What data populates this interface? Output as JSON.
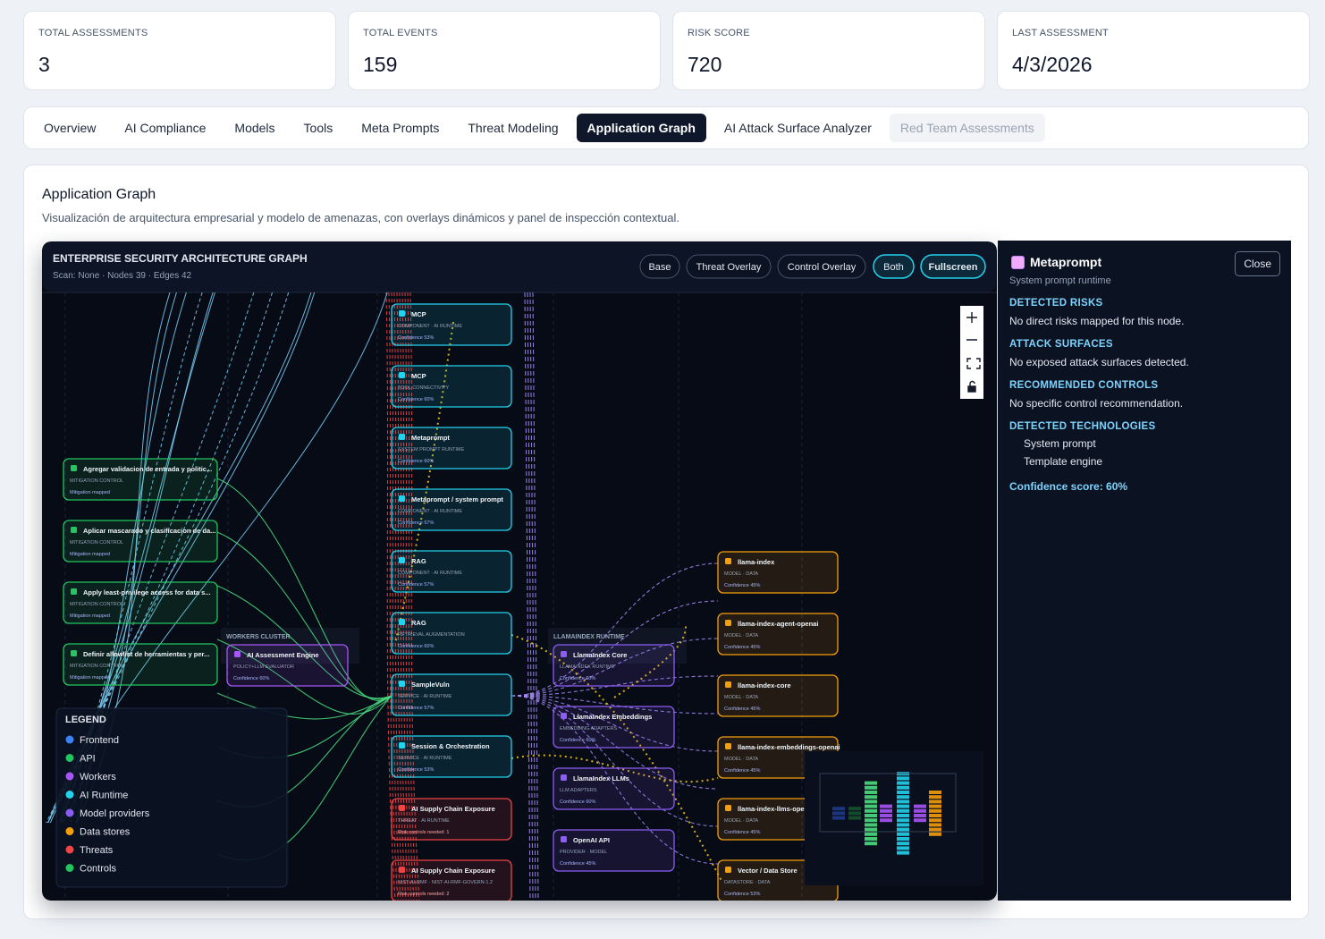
{
  "stats": [
    {
      "label": "TOTAL ASSESSMENTS",
      "value": 3
    },
    {
      "label": "TOTAL EVENTS",
      "value": 159
    },
    {
      "label": "RISK SCORE",
      "value": 720
    },
    {
      "label": "LAST ASSESSMENT",
      "value": "4/3/2026"
    }
  ],
  "tabs": [
    "Overview",
    "AI Compliance",
    "Models",
    "Tools",
    "Meta Prompts",
    "Threat Modeling",
    "Application Graph",
    "AI Attack Surface Analyzer",
    "Red Team Assessments"
  ],
  "section": {
    "title": "Application Graph",
    "subtitle": "Visualización de arquitectura empresarial y modelo de amenazas, con overlays dinámicos y panel de inspección contextual."
  },
  "graph": {
    "title": "ENTERPRISE SECURITY ARCHITECTURE GRAPH",
    "meta": "Scan: None · Nodes 39 · Edges 42",
    "buttons": [
      "Base",
      "Threat Overlay",
      "Control Overlay",
      "Both",
      "Fullscreen"
    ],
    "clusters": [
      "WORKERS CLUSTER",
      "LLAMAINDEX RUNTIME"
    ],
    "node_groups": [
      {
        "color": "#22d3ee",
        "nodes": [
          {
            "title": "MCP",
            "subtitle": "COMPONENT · AI RUNTIME",
            "footer": "Confidence 53%"
          },
          {
            "title": "MCP",
            "subtitle": "TOOL CONNECTIVITY",
            "footer": "Confidence 60%"
          },
          {
            "title": "Metaprompt",
            "subtitle": "SYSTEM PROMPT RUNTIME",
            "footer": "Confidence 60%"
          },
          {
            "title": "Metaprompt / system prompt",
            "subtitle": "COMPONENT · AI RUNTIME",
            "footer": "Confidence 57%"
          },
          {
            "title": "RAG",
            "subtitle": "COMPONENT · AI RUNTIME",
            "footer": "Confidence 57%"
          },
          {
            "title": "RAG",
            "subtitle": "RETRIEVAL AUGMENTATION",
            "footer": "Confidence 60%"
          },
          {
            "title": "SampleVuln",
            "subtitle": "SERVICE · AI RUNTIME",
            "footer": "Confidence 57%"
          },
          {
            "title": "Session & Orchestration",
            "subtitle": "SERVICE · AI RUNTIME",
            "footer": "Confidence 53%"
          }
        ]
      },
      {
        "color": "#ef4444",
        "nodes": [
          {
            "title": "AI Supply Chain Exposure",
            "subtitle": "THREAT · AI RUNTIME",
            "footer": "Risk controls needed: 1"
          },
          {
            "title": "AI Supply Chain Exposure",
            "subtitle": "NIST-AI-RMF · NIST-AI-RMF-GOVERN-1.2",
            "footer": "Risk controls needed: 2"
          }
        ]
      },
      {
        "color": "#22c55e",
        "nodes": [
          {
            "title": "Agregar validacion de entrada y politic...",
            "subtitle": "MITIGATION CONTROL",
            "footer": "Mitigation mapped"
          },
          {
            "title": "Aplicar mascarado y clasificacion de da...",
            "subtitle": "MITIGATION CONTROL",
            "footer": "Mitigation mapped"
          },
          {
            "title": "Apply least-privilege access for data s...",
            "subtitle": "MITIGATION CONTROL",
            "footer": "Mitigation mapped"
          },
          {
            "title": "Definir allowlist de herramientas y per...",
            "subtitle": "MITIGATION CONTROL",
            "footer": "Mitigation mapped"
          }
        ]
      },
      {
        "color": "#a855f7",
        "nodes": [
          {
            "title": "AI Assessment Engine",
            "subtitle": "POLICY+LLM EVALUATOR",
            "footer": "Confidence 60%"
          }
        ]
      },
      {
        "color": "#8b5cf6",
        "nodes": [
          {
            "title": "LlamaIndex Core",
            "subtitle": "LLAMAINDEX RUNTIME",
            "footer": "Confidence 60%"
          },
          {
            "title": "LlamaIndex Embeddings",
            "subtitle": "EMBEDDING ADAPTERS",
            "footer": "Confidence 60%"
          },
          {
            "title": "LlamaIndex LLMs",
            "subtitle": "LLM ADAPTERS",
            "footer": "Confidence 60%"
          },
          {
            "title": "OpenAI API",
            "subtitle": "PROVIDER · MODEL",
            "footer": "Confidence 45%"
          }
        ]
      },
      {
        "color": "#f59e0b",
        "nodes": [
          {
            "title": "llama-index",
            "subtitle": "MODEL · DATA",
            "footer": "Confidence 45%"
          },
          {
            "title": "llama-index-agent-openai",
            "subtitle": "MODEL · DATA",
            "footer": "Confidence 45%"
          },
          {
            "title": "llama-index-core",
            "subtitle": "MODEL · DATA",
            "footer": "Confidence 45%"
          },
          {
            "title": "llama-index-embeddings-openai",
            "subtitle": "MODEL · DATA",
            "footer": "Confidence 45%"
          },
          {
            "title": "llama-index-llms-ope",
            "subtitle": "MODEL · DATA",
            "footer": "Confidence 45%"
          },
          {
            "title": "Vector / Data Store",
            "subtitle": "DATASTORE · DATA",
            "footer": "Confidence 53%"
          }
        ]
      }
    ],
    "legend": {
      "title": "LEGEND",
      "items": [
        {
          "name": "Frontend",
          "color": "#3b82f6"
        },
        {
          "name": "API",
          "color": "#22c55e"
        },
        {
          "name": "Workers",
          "color": "#a855f7"
        },
        {
          "name": "AI Runtime",
          "color": "#22d3ee"
        },
        {
          "name": "Model providers",
          "color": "#8b5cf6"
        },
        {
          "name": "Data stores",
          "color": "#f59e0b"
        },
        {
          "name": "Threats",
          "color": "#ef4444"
        },
        {
          "name": "Controls",
          "color": "#22c55e"
        }
      ]
    }
  },
  "panel": {
    "title": "Metaprompt",
    "subtitle": "System prompt runtime",
    "close": "Close",
    "sections": [
      {
        "heading": "DETECTED RISKS",
        "text": "No direct risks mapped for this node."
      },
      {
        "heading": "ATTACK SURFACES",
        "text": "No exposed attack surfaces detected."
      },
      {
        "heading": "RECOMMENDED CONTROLS",
        "text": "No specific control recommendation."
      },
      {
        "heading": "DETECTED TECHNOLOGIES",
        "items": [
          "System prompt",
          "Template engine"
        ]
      }
    ],
    "confidence": "Confidence score: 60%"
  }
}
